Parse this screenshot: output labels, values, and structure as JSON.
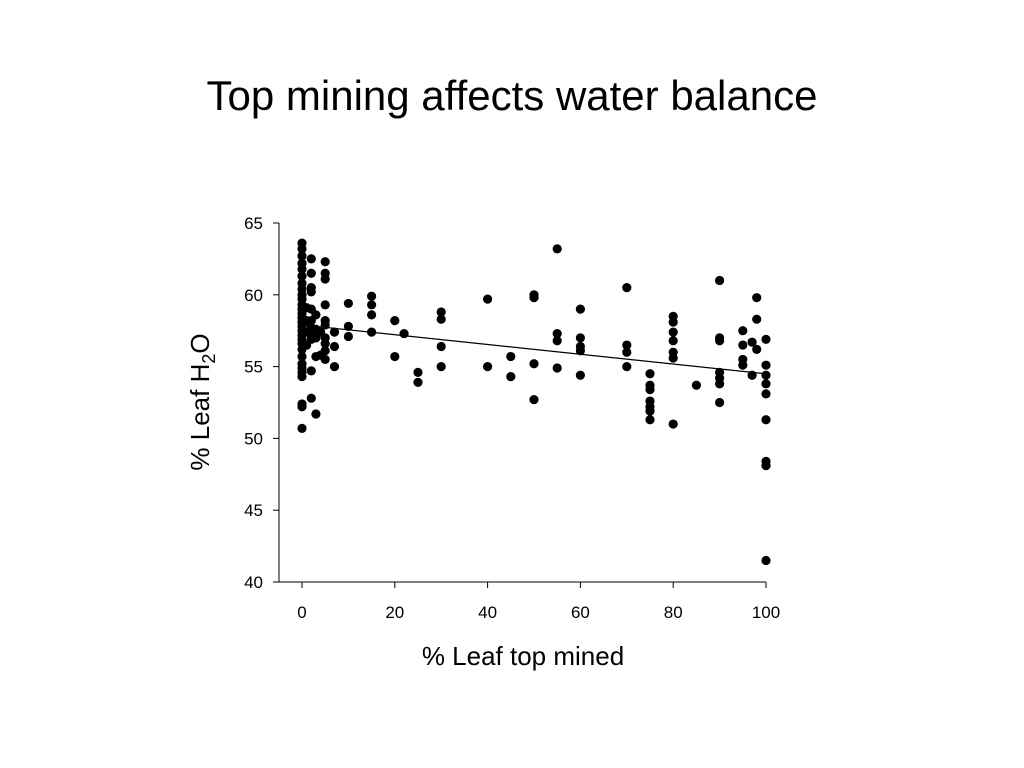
{
  "slide": {
    "title": "Top mining affects water balance"
  },
  "chart_data": {
    "type": "scatter",
    "title": "",
    "xlabel": "% Leaf top mined",
    "ylabel_main": "% Leaf H",
    "ylabel_sub": "2",
    "ylabel_tail": "O",
    "xlim": [
      -5,
      100
    ],
    "ylim": [
      40,
      65
    ],
    "xticks": [
      0,
      20,
      40,
      60,
      80,
      100
    ],
    "yticks": [
      40,
      45,
      50,
      55,
      60,
      65
    ],
    "grid": false,
    "legend": "none",
    "marker_color": "#000000",
    "trendline": {
      "x": [
        0,
        100
      ],
      "y": [
        57.9,
        54.5
      ]
    },
    "points": [
      {
        "x": 0,
        "y": 63.6
      },
      {
        "x": 0,
        "y": 63.2
      },
      {
        "x": 0,
        "y": 62.7
      },
      {
        "x": 0,
        "y": 62.2
      },
      {
        "x": 0,
        "y": 61.8
      },
      {
        "x": 0,
        "y": 61.3
      },
      {
        "x": 0,
        "y": 60.8
      },
      {
        "x": 0,
        "y": 60.4
      },
      {
        "x": 0,
        "y": 60.0
      },
      {
        "x": 0,
        "y": 59.7
      },
      {
        "x": 0,
        "y": 59.3
      },
      {
        "x": 0,
        "y": 59.0
      },
      {
        "x": 0,
        "y": 58.7
      },
      {
        "x": 0,
        "y": 58.4
      },
      {
        "x": 0,
        "y": 58.1
      },
      {
        "x": 0,
        "y": 57.8
      },
      {
        "x": 0,
        "y": 57.5
      },
      {
        "x": 0,
        "y": 57.2
      },
      {
        "x": 0,
        "y": 56.9
      },
      {
        "x": 0,
        "y": 56.6
      },
      {
        "x": 0,
        "y": 56.2
      },
      {
        "x": 0,
        "y": 55.7
      },
      {
        "x": 0,
        "y": 55.2
      },
      {
        "x": 0,
        "y": 54.9
      },
      {
        "x": 0,
        "y": 54.6
      },
      {
        "x": 0,
        "y": 54.3
      },
      {
        "x": 0,
        "y": 52.4
      },
      {
        "x": 0,
        "y": 52.2
      },
      {
        "x": 0,
        "y": 50.7
      },
      {
        "x": 1,
        "y": 59.1
      },
      {
        "x": 1,
        "y": 58.2
      },
      {
        "x": 1,
        "y": 57.4
      },
      {
        "x": 1,
        "y": 56.5
      },
      {
        "x": 2,
        "y": 62.5
      },
      {
        "x": 2,
        "y": 61.5
      },
      {
        "x": 2,
        "y": 60.5
      },
      {
        "x": 2,
        "y": 60.2
      },
      {
        "x": 2,
        "y": 59.0
      },
      {
        "x": 2,
        "y": 58.2
      },
      {
        "x": 2,
        "y": 57.7
      },
      {
        "x": 2,
        "y": 57.2
      },
      {
        "x": 2,
        "y": 56.9
      },
      {
        "x": 2,
        "y": 54.7
      },
      {
        "x": 2,
        "y": 52.8
      },
      {
        "x": 3,
        "y": 58.6
      },
      {
        "x": 3,
        "y": 57.6
      },
      {
        "x": 3,
        "y": 57.0
      },
      {
        "x": 3,
        "y": 55.7
      },
      {
        "x": 3,
        "y": 51.7
      },
      {
        "x": 4,
        "y": 57.4
      },
      {
        "x": 4,
        "y": 55.8
      },
      {
        "x": 5,
        "y": 62.3
      },
      {
        "x": 5,
        "y": 61.5
      },
      {
        "x": 5,
        "y": 61.1
      },
      {
        "x": 5,
        "y": 59.3
      },
      {
        "x": 5,
        "y": 58.2
      },
      {
        "x": 5,
        "y": 57.9
      },
      {
        "x": 5,
        "y": 57.0
      },
      {
        "x": 5,
        "y": 56.6
      },
      {
        "x": 5,
        "y": 56.1
      },
      {
        "x": 5,
        "y": 55.5
      },
      {
        "x": 7,
        "y": 57.4
      },
      {
        "x": 7,
        "y": 56.4
      },
      {
        "x": 7,
        "y": 55.0
      },
      {
        "x": 10,
        "y": 59.4
      },
      {
        "x": 10,
        "y": 57.8
      },
      {
        "x": 10,
        "y": 57.1
      },
      {
        "x": 15,
        "y": 59.9
      },
      {
        "x": 15,
        "y": 59.3
      },
      {
        "x": 15,
        "y": 58.6
      },
      {
        "x": 15,
        "y": 57.4
      },
      {
        "x": 20,
        "y": 58.2
      },
      {
        "x": 20,
        "y": 55.7
      },
      {
        "x": 22,
        "y": 57.3
      },
      {
        "x": 25,
        "y": 54.6
      },
      {
        "x": 25,
        "y": 53.9
      },
      {
        "x": 30,
        "y": 58.8
      },
      {
        "x": 30,
        "y": 58.3
      },
      {
        "x": 30,
        "y": 56.4
      },
      {
        "x": 30,
        "y": 55.0
      },
      {
        "x": 40,
        "y": 59.7
      },
      {
        "x": 40,
        "y": 55.0
      },
      {
        "x": 45,
        "y": 55.7
      },
      {
        "x": 45,
        "y": 54.3
      },
      {
        "x": 50,
        "y": 60.0
      },
      {
        "x": 50,
        "y": 59.8
      },
      {
        "x": 50,
        "y": 55.2
      },
      {
        "x": 50,
        "y": 52.7
      },
      {
        "x": 55,
        "y": 63.2
      },
      {
        "x": 55,
        "y": 57.3
      },
      {
        "x": 55,
        "y": 56.8
      },
      {
        "x": 55,
        "y": 54.9
      },
      {
        "x": 60,
        "y": 59.0
      },
      {
        "x": 60,
        "y": 57.0
      },
      {
        "x": 60,
        "y": 56.4
      },
      {
        "x": 60,
        "y": 56.1
      },
      {
        "x": 60,
        "y": 54.4
      },
      {
        "x": 70,
        "y": 60.5
      },
      {
        "x": 70,
        "y": 56.5
      },
      {
        "x": 70,
        "y": 56.0
      },
      {
        "x": 70,
        "y": 55.0
      },
      {
        "x": 75,
        "y": 54.5
      },
      {
        "x": 75,
        "y": 53.7
      },
      {
        "x": 75,
        "y": 53.4
      },
      {
        "x": 75,
        "y": 52.6
      },
      {
        "x": 75,
        "y": 52.2
      },
      {
        "x": 75,
        "y": 51.9
      },
      {
        "x": 75,
        "y": 51.3
      },
      {
        "x": 80,
        "y": 58.5
      },
      {
        "x": 80,
        "y": 58.1
      },
      {
        "x": 80,
        "y": 57.4
      },
      {
        "x": 80,
        "y": 56.8
      },
      {
        "x": 80,
        "y": 56.0
      },
      {
        "x": 80,
        "y": 55.6
      },
      {
        "x": 80,
        "y": 51.0
      },
      {
        "x": 85,
        "y": 53.7
      },
      {
        "x": 90,
        "y": 61.0
      },
      {
        "x": 90,
        "y": 57.0
      },
      {
        "x": 90,
        "y": 56.8
      },
      {
        "x": 90,
        "y": 54.6
      },
      {
        "x": 90,
        "y": 54.2
      },
      {
        "x": 90,
        "y": 53.8
      },
      {
        "x": 90,
        "y": 52.5
      },
      {
        "x": 95,
        "y": 57.5
      },
      {
        "x": 95,
        "y": 56.5
      },
      {
        "x": 95,
        "y": 55.5
      },
      {
        "x": 95,
        "y": 55.1
      },
      {
        "x": 97,
        "y": 56.7
      },
      {
        "x": 97,
        "y": 54.4
      },
      {
        "x": 98,
        "y": 59.8
      },
      {
        "x": 98,
        "y": 58.3
      },
      {
        "x": 98,
        "y": 56.2
      },
      {
        "x": 100,
        "y": 56.9
      },
      {
        "x": 100,
        "y": 55.1
      },
      {
        "x": 100,
        "y": 54.4
      },
      {
        "x": 100,
        "y": 53.8
      },
      {
        "x": 100,
        "y": 53.1
      },
      {
        "x": 100,
        "y": 51.3
      },
      {
        "x": 100,
        "y": 48.4
      },
      {
        "x": 100,
        "y": 48.1
      },
      {
        "x": 100,
        "y": 41.5
      }
    ]
  }
}
